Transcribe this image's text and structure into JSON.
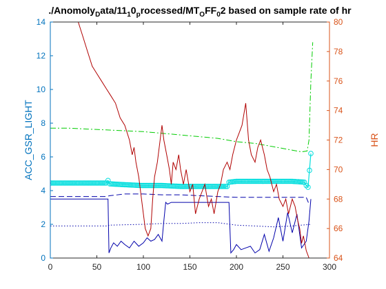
{
  "chart_data": {
    "type": "line",
    "title": {
      "parts": [
        {
          "text": "./Anomoly",
          "sub": false
        },
        {
          "text": "D",
          "sub": true
        },
        {
          "text": "ata/11",
          "sub": false
        },
        {
          "text": "1",
          "sub": true
        },
        {
          "text": "0",
          "sub": false
        },
        {
          "text": "p",
          "sub": true
        },
        {
          "text": "rocessed/MT",
          "sub": false
        },
        {
          "text": "O",
          "sub": true
        },
        {
          "text": "FF",
          "sub": false
        },
        {
          "text": "0",
          "sub": true
        },
        {
          "text": "2 based on sample rate of hr",
          "sub": false
        }
      ]
    },
    "ylabel_left": "ACC_GSR_LIGHT",
    "ylabel_right": "HR",
    "xlim": [
      0,
      300
    ],
    "ylim_left": [
      0,
      14
    ],
    "ylim_right": [
      64,
      80
    ],
    "xticks": [
      "0",
      "50",
      "100",
      "150",
      "200",
      "250",
      "300"
    ],
    "yticks_left": [
      "0",
      "2",
      "4",
      "6",
      "8",
      "10",
      "12",
      "14"
    ],
    "yticks_right": [
      "64",
      "66",
      "68",
      "70",
      "72",
      "74",
      "76",
      "78",
      "80"
    ],
    "grid": false,
    "colors": {
      "left_axis": "#0072BD",
      "right_axis": "#D95319",
      "blue": "#0000aa",
      "green": "#00cc00",
      "cyan": "#00dddd",
      "red": "#b00000"
    },
    "series": [
      {
        "axis": "left",
        "color": "#00cc00",
        "style": "dashdot",
        "marker": "none",
        "x": [
          0,
          20,
          40,
          60,
          80,
          100,
          120,
          140,
          160,
          180,
          200,
          220,
          240,
          260,
          270,
          276,
          278,
          280,
          282
        ],
        "y": [
          7.7,
          7.7,
          7.65,
          7.6,
          7.55,
          7.5,
          7.4,
          7.3,
          7.2,
          7.1,
          6.9,
          6.8,
          6.6,
          6.4,
          6.3,
          6.35,
          7.0,
          10.5,
          12.8
        ]
      },
      {
        "axis": "left",
        "color": "#00dddd",
        "style": "solid",
        "marker": "circle",
        "x": [
          0,
          20,
          40,
          60,
          62,
          64,
          80,
          100,
          120,
          140,
          160,
          180,
          190,
          192,
          200,
          220,
          240,
          260,
          273,
          275,
          277,
          280
        ],
        "y": [
          4.45,
          4.45,
          4.45,
          4.45,
          4.6,
          4.4,
          4.35,
          4.3,
          4.3,
          4.25,
          4.25,
          4.25,
          4.25,
          4.5,
          4.55,
          4.55,
          4.55,
          4.55,
          4.5,
          4.3,
          4.2,
          6.2
        ]
      },
      {
        "axis": "left",
        "color": "#0000aa",
        "style": "dashed",
        "marker": "none",
        "x": [
          0,
          20,
          40,
          60,
          64,
          80,
          100,
          120,
          140,
          160,
          180,
          200,
          220,
          240,
          260,
          275,
          278
        ],
        "y": [
          3.65,
          3.65,
          3.65,
          3.65,
          3.7,
          3.8,
          3.8,
          3.75,
          3.75,
          3.7,
          3.65,
          3.6,
          3.6,
          3.6,
          3.6,
          3.6,
          3.2
        ]
      },
      {
        "axis": "left",
        "color": "#0000aa",
        "style": "solid",
        "marker": "none",
        "x": [
          0,
          62,
          63,
          65,
          68,
          72,
          76,
          80,
          85,
          90,
          95,
          100,
          104,
          108,
          112,
          116,
          120,
          122,
          124,
          126,
          130,
          140,
          160,
          180,
          192,
          194,
          197,
          200,
          205,
          210,
          215,
          220,
          225,
          230,
          235,
          240,
          245,
          250,
          255,
          260,
          265,
          270,
          275,
          278,
          280
        ],
        "y": [
          3.5,
          3.5,
          0.3,
          0.6,
          0.9,
          0.7,
          1.0,
          0.8,
          0.6,
          1.0,
          0.7,
          0.9,
          1.2,
          1.0,
          1.1,
          1.4,
          1.0,
          2.2,
          3.3,
          3.2,
          3.3,
          3.3,
          3.3,
          3.3,
          3.3,
          0.3,
          0.5,
          0.8,
          0.5,
          0.6,
          0.7,
          0.3,
          0.5,
          1.4,
          0.4,
          1.2,
          2.4,
          1.0,
          2.7,
          1.5,
          2.6,
          0.6,
          1.0,
          2.2,
          3.5
        ]
      },
      {
        "axis": "left",
        "color": "#0000aa",
        "style": "dotted",
        "marker": "none",
        "x": [
          0,
          60,
          64,
          100,
          120,
          140,
          160,
          180,
          200,
          220,
          240,
          260,
          280
        ],
        "y": [
          1.9,
          1.9,
          1.95,
          2.0,
          2.05,
          2.05,
          2.1,
          2.1,
          1.95,
          1.9,
          1.85,
          1.9,
          2.0
        ]
      },
      {
        "axis": "right",
        "color": "#b00000",
        "style": "solid",
        "marker": "none",
        "x": [
          28,
          30,
          35,
          40,
          45,
          50,
          55,
          60,
          65,
          70,
          75,
          80,
          85,
          88,
          90,
          92,
          95,
          98,
          100,
          102,
          105,
          108,
          110,
          112,
          115,
          118,
          120,
          122,
          125,
          128,
          130,
          132,
          135,
          138,
          140,
          143,
          146,
          150,
          153,
          156,
          160,
          163,
          166,
          170,
          173,
          176,
          180,
          183,
          186,
          190,
          193,
          196,
          200,
          203,
          206,
          210,
          213,
          216,
          220,
          223,
          226,
          230,
          233,
          236,
          240,
          243,
          246,
          250,
          253,
          256,
          260,
          263,
          266,
          268,
          270,
          272,
          275,
          278
        ],
        "y": [
          80,
          80,
          79,
          78,
          77,
          76.5,
          76,
          75.5,
          75,
          74.5,
          73.5,
          73,
          72,
          71,
          71.5,
          70.5,
          69.5,
          68,
          67,
          66,
          65.5,
          66,
          68,
          69.5,
          70.5,
          72,
          73,
          72,
          71,
          70,
          69,
          70.5,
          70,
          71,
          70,
          69,
          70,
          68.5,
          69,
          67,
          68,
          68.5,
          69,
          67.5,
          68,
          67,
          68.5,
          69,
          70,
          70.5,
          70,
          71,
          72,
          72.5,
          73,
          74.5,
          72,
          71,
          70.5,
          71.5,
          72,
          71,
          70,
          69.5,
          68.5,
          69,
          68,
          67.5,
          68,
          67,
          68,
          67.5,
          66.5,
          66,
          65,
          65.5,
          64.5,
          64
        ]
      }
    ]
  }
}
